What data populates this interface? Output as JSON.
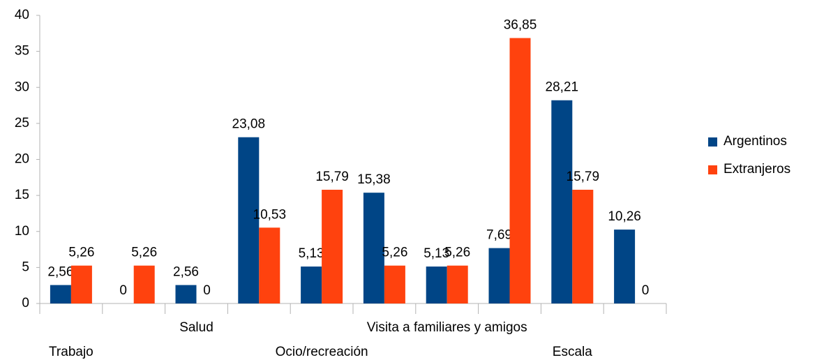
{
  "chart_data": {
    "type": "bar",
    "categories": [
      "Trabajo",
      null,
      "Salud",
      null,
      "Ocio/recreación",
      null,
      "Visita a familiares y amigos",
      null,
      "Escala",
      null
    ],
    "series": [
      {
        "name": "Argentinos",
        "color": "#004586",
        "values": [
          2.56,
          0,
          2.56,
          23.08,
          5.13,
          15.38,
          5.13,
          7.69,
          28.21,
          10.26
        ],
        "value_labels": [
          "2,56",
          "0",
          "2,56",
          "23,08",
          "5,13",
          "15,38",
          "5,13",
          "7,69",
          "28,21",
          "10,26"
        ]
      },
      {
        "name": "Extranjeros",
        "color": "#ff420e",
        "values": [
          5.26,
          5.26,
          0,
          10.53,
          15.79,
          5.26,
          5.26,
          36.85,
          15.79,
          0
        ],
        "value_labels": [
          "5,26",
          "5,26",
          "0",
          "10,53",
          "15,79",
          "5,26",
          "5,26",
          "36,85",
          "15,79",
          "0"
        ]
      }
    ],
    "ylim": [
      0,
      40
    ],
    "yticks": [
      0,
      5,
      10,
      15,
      20,
      25,
      30,
      35,
      40
    ],
    "grid": false,
    "legend": "right"
  }
}
